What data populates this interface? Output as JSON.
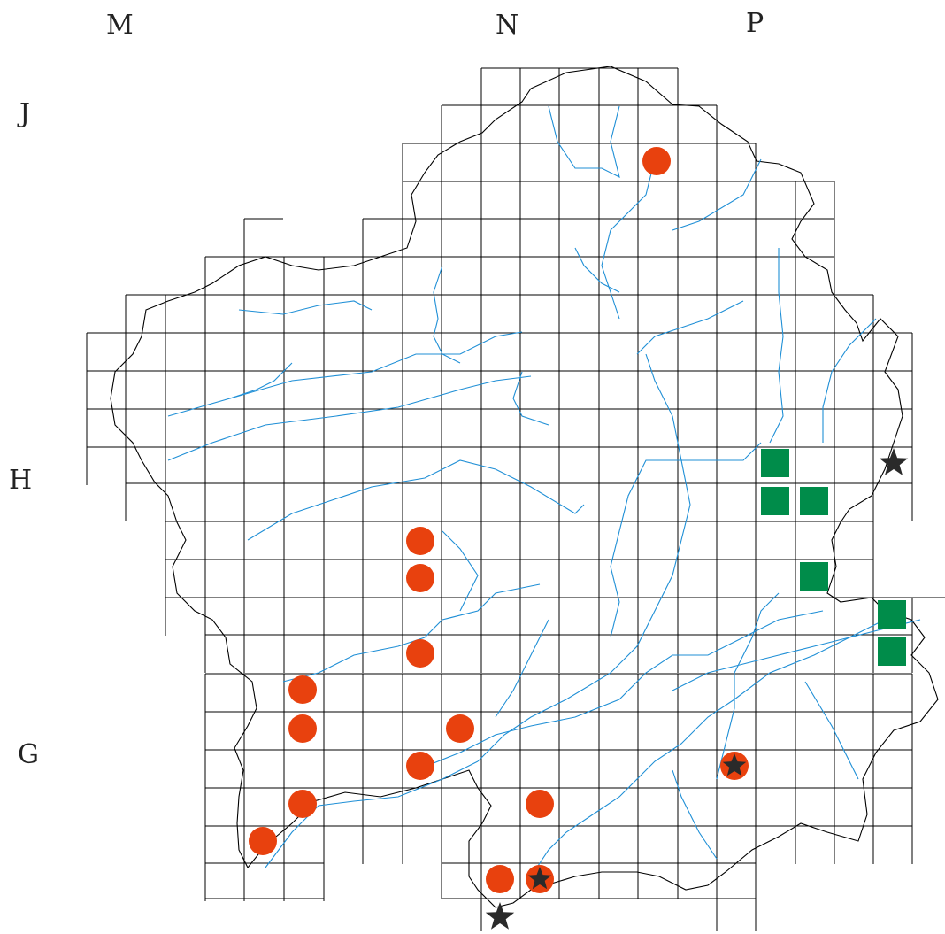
{
  "labels": {
    "columns": [
      "M",
      "N",
      "P"
    ],
    "rows": [
      "J",
      "H",
      "G"
    ]
  },
  "colors": {
    "grid": "#000000",
    "border": "#000000",
    "rivers": "#1f8fd6",
    "circle_marker": "#e8410e",
    "square_marker": "#008c4a",
    "star_marker": "#2a2a2a"
  },
  "legend_symbols": {
    "circle": "orange-circle-marker",
    "square": "green-square-marker",
    "star": "black-star-marker"
  }
}
